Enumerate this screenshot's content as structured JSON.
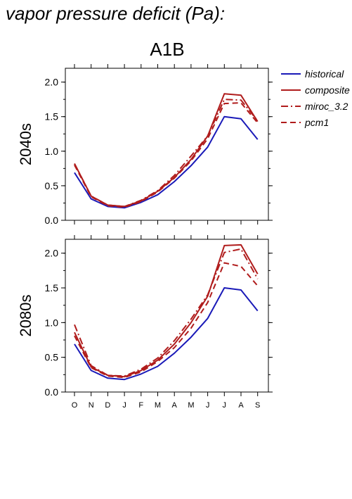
{
  "title": "vapor pressure deficit (Pa):",
  "scenario": "A1B",
  "legend": [
    {
      "label": "historical",
      "color": "#1a1ab8",
      "dash": "solid"
    },
    {
      "label": "composite",
      "color": "#b01c1c",
      "dash": "solid"
    },
    {
      "label": "miroc_3.2",
      "color": "#b01c1c",
      "dash": "dashdot"
    },
    {
      "label": "pcm1",
      "color": "#b01c1c",
      "dash": "dash"
    }
  ],
  "chart_data": [
    {
      "type": "line",
      "ylabel": "2040s",
      "ylim": [
        0.0,
        2.2
      ],
      "yticks": [
        "0.0",
        "0.5",
        "1.0",
        "1.5",
        "2.0"
      ],
      "categories": [
        "O",
        "N",
        "D",
        "J",
        "F",
        "M",
        "A",
        "M",
        "J",
        "J",
        "A",
        "S"
      ],
      "series": [
        {
          "name": "historical",
          "values": [
            0.69,
            0.31,
            0.2,
            0.18,
            0.26,
            0.37,
            0.56,
            0.79,
            1.06,
            1.5,
            1.47,
            1.17
          ]
        },
        {
          "name": "composite",
          "values": [
            0.82,
            0.35,
            0.22,
            0.2,
            0.28,
            0.42,
            0.62,
            0.88,
            1.22,
            1.83,
            1.81,
            1.43
          ]
        },
        {
          "name": "miroc_3.2",
          "values": [
            0.82,
            0.35,
            0.22,
            0.2,
            0.29,
            0.43,
            0.65,
            0.93,
            1.22,
            1.75,
            1.74,
            1.44
          ]
        },
        {
          "name": "pcm1",
          "values": [
            0.8,
            0.34,
            0.21,
            0.19,
            0.27,
            0.41,
            0.61,
            0.86,
            1.18,
            1.69,
            1.7,
            1.41
          ]
        }
      ]
    },
    {
      "type": "line",
      "ylabel": "2080s",
      "xlabel": "",
      "ylim": [
        0.0,
        2.2
      ],
      "yticks": [
        "0.0",
        "0.5",
        "1.0",
        "1.5",
        "2.0"
      ],
      "categories": [
        "O",
        "N",
        "D",
        "J",
        "F",
        "M",
        "A",
        "M",
        "J",
        "J",
        "A",
        "S"
      ],
      "series": [
        {
          "name": "historical",
          "values": [
            0.69,
            0.31,
            0.2,
            0.18,
            0.26,
            0.37,
            0.56,
            0.79,
            1.06,
            1.5,
            1.47,
            1.17
          ]
        },
        {
          "name": "composite",
          "values": [
            0.86,
            0.36,
            0.24,
            0.22,
            0.31,
            0.46,
            0.69,
            1.0,
            1.38,
            2.11,
            2.12,
            1.7
          ]
        },
        {
          "name": "miroc_3.2",
          "values": [
            0.97,
            0.38,
            0.24,
            0.23,
            0.33,
            0.49,
            0.74,
            1.05,
            1.4,
            2.01,
            2.06,
            1.63
          ]
        },
        {
          "name": "pcm1",
          "values": [
            0.81,
            0.35,
            0.23,
            0.21,
            0.29,
            0.44,
            0.64,
            0.92,
            1.29,
            1.86,
            1.81,
            1.53
          ]
        }
      ]
    }
  ]
}
